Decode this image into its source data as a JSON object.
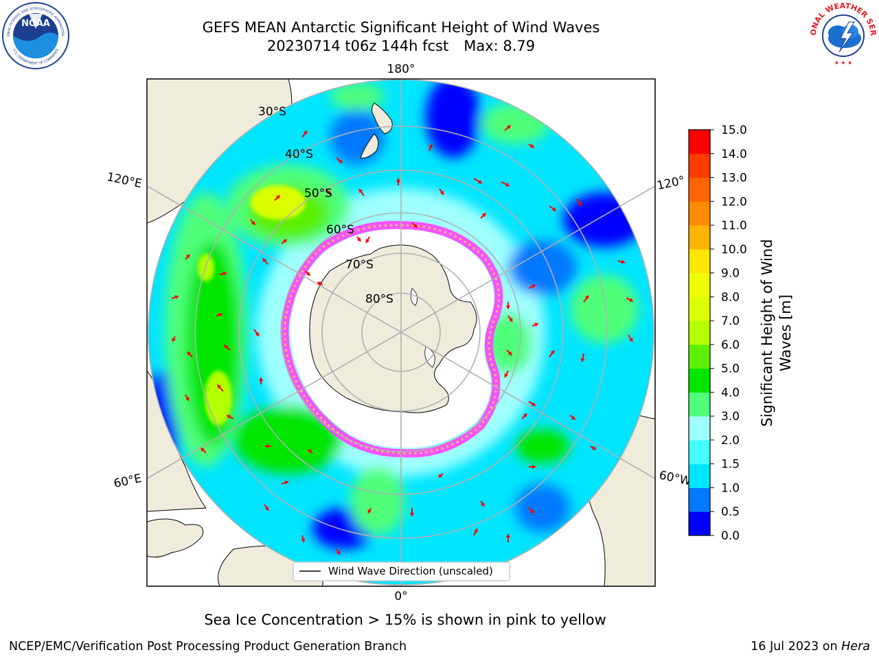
{
  "header": {
    "title_line1": "GEFS MEAN Antarctic Significant Height of Wind Waves",
    "title_run": "20230714 t06z 144h fcst",
    "title_max": "Max: 8.79"
  },
  "logos": {
    "noaa_text": "NOAA",
    "noaa_ring_text": "NATIONAL OCEANIC AND ATMOSPHERIC ADMINISTRATION",
    "noaa_ring_bottom": "U.S. DEPARTMENT OF COMMERCE",
    "nws_ring_text": "NATIONAL WEATHER SERVICE"
  },
  "map": {
    "projection": "south-polar-stereographic",
    "longitude_labels": {
      "top": "180°",
      "bottom": "0°",
      "upper_left": "120°E",
      "upper_right": "120°",
      "lower_left": "60°E",
      "lower_right": "60°W"
    },
    "latitude_labels": [
      "30°S",
      "40°S",
      "50°S",
      "60°S",
      "70°S",
      "80°S"
    ],
    "legend_label": "Wind Wave Direction (unscaled)",
    "colors": {
      "land": "#efecdc",
      "ocean_low": "#0000ff",
      "ocean_mid": "#00ffff",
      "ocean_high": "#00e600",
      "peak": "#ffff00",
      "ice": "#ff40ff",
      "arrow": "#ff0000",
      "grid": "#b0b0b0"
    }
  },
  "colorbar": {
    "label": "Significant Height of Wind Waves [m]",
    "label_line1": "Significant Height of Wind",
    "label_line2": "Waves [m]",
    "ticks": [
      "0.0",
      "0.5",
      "1.0",
      "1.5",
      "2.0",
      "3.0",
      "4.0",
      "5.0",
      "6.0",
      "7.0",
      "8.0",
      "9.0",
      "10.0",
      "11.0",
      "12.0",
      "13.0",
      "14.0",
      "15.0"
    ],
    "colors": [
      "#0000ff",
      "#0078ff",
      "#00e5ff",
      "#43ffff",
      "#a0ffff",
      "#50ff7a",
      "#00e600",
      "#5af000",
      "#b4ff00",
      "#dcff00",
      "#f0ff00",
      "#ffe600",
      "#ffb400",
      "#ff8c00",
      "#ff6400",
      "#ff3c00",
      "#ff0000"
    ]
  },
  "caption": "Sea Ice Concentration > 15% is shown in pink to yellow",
  "footer": {
    "left": "NCEP/EMC/Verification Post Processing Product Generation Branch",
    "right_date": "16 Jul 2023 on ",
    "right_host": "Hera"
  }
}
